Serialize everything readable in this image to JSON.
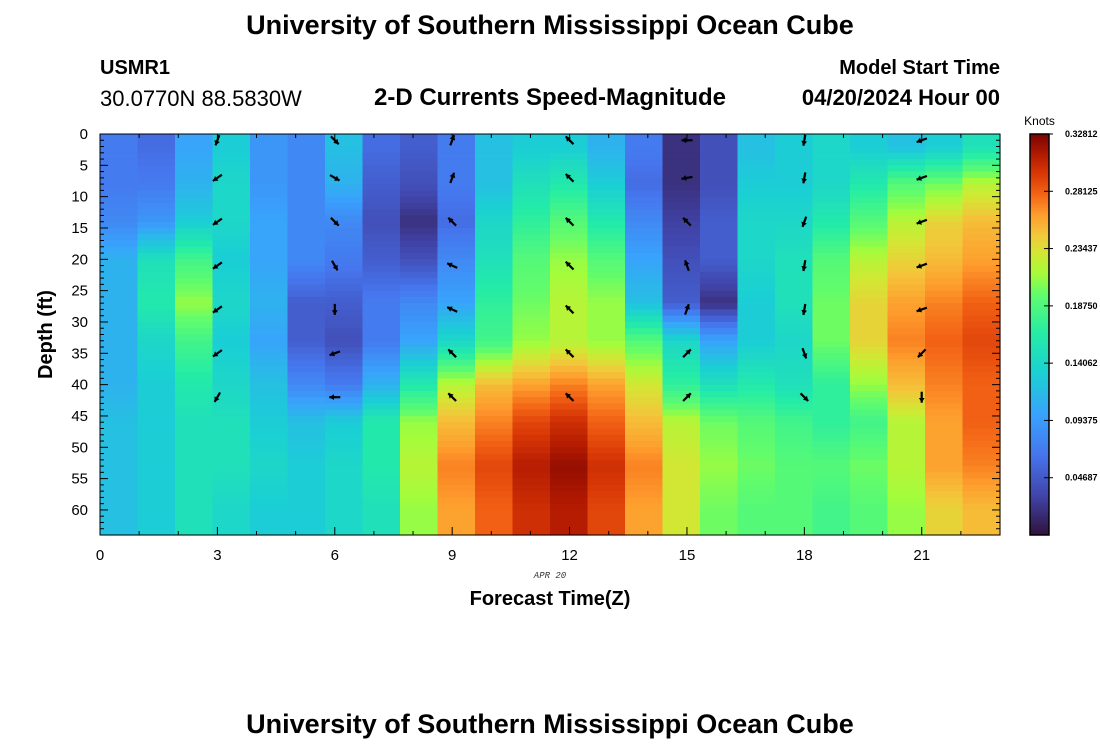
{
  "header": {
    "title": "University of Southern Mississippi Ocean Cube",
    "station_id": "USMR1",
    "coordinates": "30.0770N  88.5830W",
    "subtitle": "2-D Currents Speed-Magnitude",
    "model_start_label": "Model Start Time",
    "model_start_value": "04/20/2024 Hour 00"
  },
  "footer": {
    "title": "University of Southern Mississippi Ocean Cube"
  },
  "chart_data": {
    "type": "heatmap",
    "title": "2-D Currents Speed-Magnitude",
    "xlabel": "Forecast Time(Z)",
    "ylabel": "Depth (ft)",
    "date_label": "APR 20",
    "xlim": [
      0,
      23
    ],
    "ylim": [
      0,
      64
    ],
    "y_inverted": true,
    "x_ticks": [
      "0",
      "3",
      "6",
      "9",
      "12",
      "15",
      "18",
      "21"
    ],
    "y_ticks": [
      "0",
      "5",
      "10",
      "15",
      "20",
      "25",
      "30",
      "35",
      "40",
      "45",
      "50",
      "55",
      "60"
    ],
    "colorbar": {
      "unit": "Knots",
      "min": 0.0,
      "max": 0.328125,
      "labels": [
        "0.32812",
        "0.28125",
        "0.23437",
        "0.18750",
        "0.14062",
        "0.09375",
        "0.04687"
      ]
    },
    "depth_levels": [
      2,
      8,
      14,
      20,
      27,
      33,
      40,
      46,
      53,
      60
    ],
    "hours": [
      0,
      1,
      2,
      3,
      4,
      5,
      6,
      7,
      8,
      9,
      10,
      11,
      12,
      13,
      14,
      15,
      16,
      17,
      18,
      19,
      20,
      21,
      22,
      23
    ],
    "speed": [
      [
        0.07,
        0.06,
        0.1,
        0.13,
        0.09,
        0.08,
        0.12,
        0.06,
        0.05,
        0.07,
        0.12,
        0.13,
        0.13,
        0.11,
        0.07,
        0.02,
        0.04,
        0.12,
        0.13,
        0.14,
        0.13,
        0.12,
        0.13,
        0.15
      ],
      [
        0.07,
        0.07,
        0.11,
        0.14,
        0.09,
        0.08,
        0.11,
        0.05,
        0.04,
        0.07,
        0.12,
        0.15,
        0.16,
        0.13,
        0.06,
        0.02,
        0.04,
        0.13,
        0.13,
        0.14,
        0.16,
        0.19,
        0.2,
        0.22
      ],
      [
        0.08,
        0.09,
        0.13,
        0.14,
        0.1,
        0.08,
        0.08,
        0.04,
        0.02,
        0.06,
        0.14,
        0.17,
        0.19,
        0.16,
        0.08,
        0.03,
        0.05,
        0.14,
        0.14,
        0.16,
        0.19,
        0.22,
        0.24,
        0.25
      ],
      [
        0.11,
        0.15,
        0.18,
        0.13,
        0.1,
        0.08,
        0.07,
        0.05,
        0.04,
        0.08,
        0.15,
        0.19,
        0.21,
        0.19,
        0.1,
        0.04,
        0.05,
        0.14,
        0.15,
        0.19,
        0.22,
        0.24,
        0.25,
        0.26
      ],
      [
        0.11,
        0.16,
        0.21,
        0.14,
        0.11,
        0.05,
        0.05,
        0.07,
        0.08,
        0.1,
        0.17,
        0.2,
        0.22,
        0.21,
        0.12,
        0.05,
        0.02,
        0.13,
        0.15,
        0.2,
        0.24,
        0.26,
        0.27,
        0.28
      ],
      [
        0.11,
        0.14,
        0.18,
        0.13,
        0.1,
        0.05,
        0.04,
        0.07,
        0.1,
        0.14,
        0.18,
        0.21,
        0.22,
        0.21,
        0.19,
        0.14,
        0.1,
        0.13,
        0.14,
        0.2,
        0.24,
        0.27,
        0.28,
        0.29
      ],
      [
        0.11,
        0.13,
        0.16,
        0.14,
        0.12,
        0.08,
        0.07,
        0.11,
        0.16,
        0.22,
        0.25,
        0.26,
        0.27,
        0.26,
        0.23,
        0.17,
        0.15,
        0.16,
        0.15,
        0.17,
        0.21,
        0.25,
        0.27,
        0.28
      ],
      [
        0.12,
        0.13,
        0.15,
        0.15,
        0.13,
        0.12,
        0.13,
        0.16,
        0.21,
        0.25,
        0.27,
        0.29,
        0.3,
        0.28,
        0.25,
        0.22,
        0.2,
        0.19,
        0.18,
        0.17,
        0.18,
        0.22,
        0.26,
        0.28
      ],
      [
        0.12,
        0.13,
        0.15,
        0.15,
        0.14,
        0.13,
        0.14,
        0.16,
        0.22,
        0.27,
        0.29,
        0.31,
        0.32,
        0.3,
        0.27,
        0.23,
        0.21,
        0.2,
        0.19,
        0.19,
        0.2,
        0.22,
        0.26,
        0.27
      ],
      [
        0.12,
        0.13,
        0.15,
        0.14,
        0.13,
        0.13,
        0.14,
        0.15,
        0.21,
        0.26,
        0.28,
        0.3,
        0.31,
        0.29,
        0.26,
        0.23,
        0.2,
        0.19,
        0.19,
        0.18,
        0.19,
        0.21,
        0.24,
        0.25
      ]
    ],
    "vector_hours": [
      3,
      6,
      9,
      12,
      15,
      18,
      21
    ],
    "vector_depths": [
      1,
      7,
      14,
      21,
      28,
      35,
      42
    ],
    "direction_deg": [
      [
        200,
        135,
        20,
        315,
        270,
        190,
        250
      ],
      [
        235,
        120,
        20,
        315,
        260,
        190,
        250
      ],
      [
        235,
        135,
        315,
        315,
        315,
        200,
        250
      ],
      [
        235,
        150,
        295,
        315,
        340,
        190,
        250
      ],
      [
        235,
        180,
        295,
        315,
        20,
        190,
        250
      ],
      [
        235,
        250,
        315,
        315,
        45,
        160,
        225
      ],
      [
        210,
        270,
        315,
        315,
        45,
        135,
        180
      ]
    ]
  }
}
